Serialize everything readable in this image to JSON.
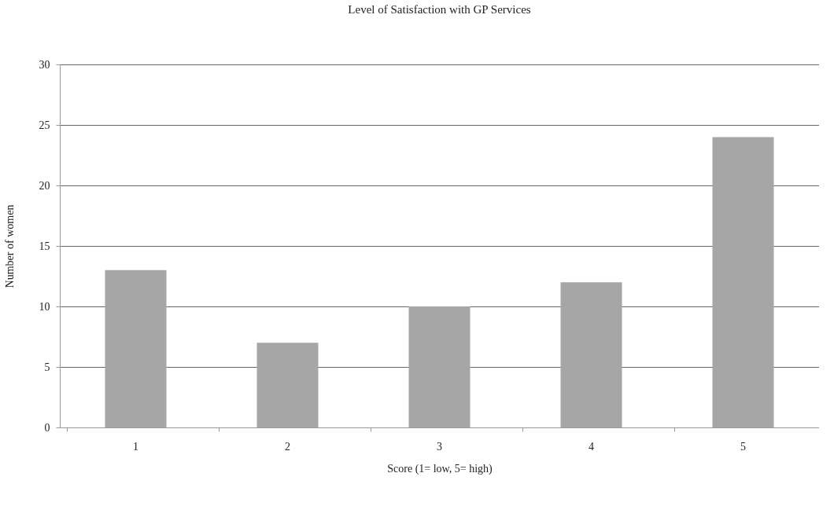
{
  "chart_data": {
    "type": "bar",
    "title": "Level of Satisfaction with GP Services",
    "xlabel": "Score  (1= low, 5= high)",
    "ylabel": "Number of women",
    "categories": [
      "1",
      "2",
      "3",
      "4",
      "5"
    ],
    "values": [
      13,
      7,
      10,
      12,
      24
    ],
    "color": "#a6a6a6",
    "ylim": [
      0,
      30
    ],
    "yticks": [
      0,
      5,
      10,
      15,
      20,
      25,
      30
    ],
    "grid": "y"
  }
}
